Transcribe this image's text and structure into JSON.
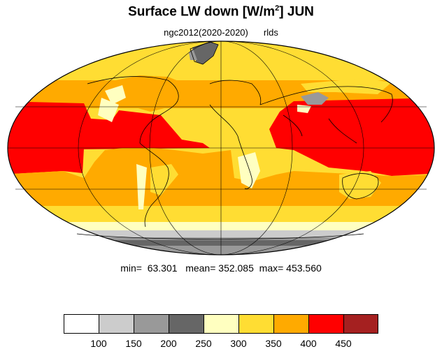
{
  "title": {
    "main": "Surface LW down [W/m",
    "sup": "2",
    "suffix": "]  JUN"
  },
  "subtitle": {
    "run": "ngc2012(2020-2020)",
    "variable": "rlds"
  },
  "stats": {
    "text": "min=  63.301   mean= 352.085  max= 453.560"
  },
  "colorbar": {
    "colors": [
      "#ffffff",
      "#cccccc",
      "#999999",
      "#666666",
      "#ffffc0",
      "#ffdd33",
      "#ffaa00",
      "#ff0000",
      "#a52020"
    ],
    "labels": [
      "100",
      "150",
      "200",
      "250",
      "300",
      "350",
      "400",
      "450"
    ]
  },
  "map_layers": {
    "projection": "mollweide",
    "base_color": "#ffdd33",
    "line_color": "#000000"
  }
}
